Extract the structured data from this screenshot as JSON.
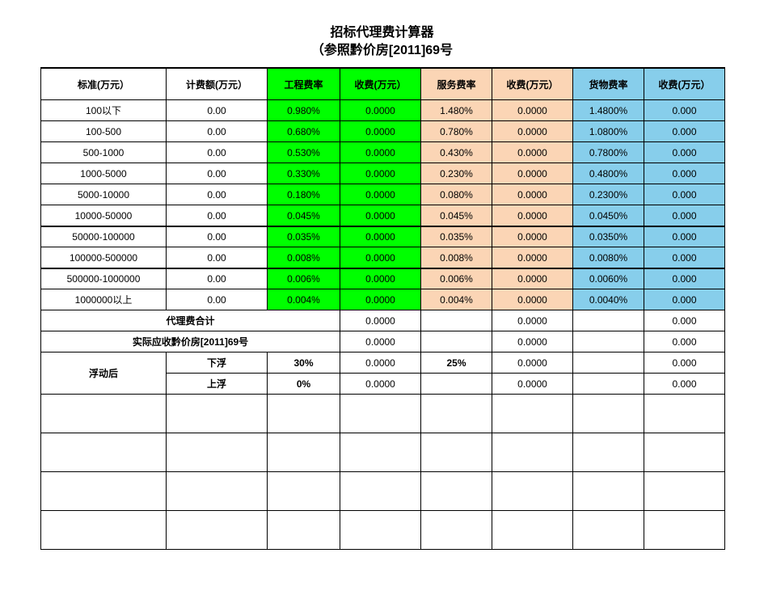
{
  "title_line1": "招标代理费计算器",
  "title_line2": "（参照黔价房[2011]69号",
  "headers": {
    "c0": "标准(万元）",
    "c1": "计费额(万元）",
    "c2": "工程费率",
    "c3": "收费(万元）",
    "c4": "服务费率",
    "c5": "收费(万元）",
    "c6": "货物费率",
    "c7": "收费(万元）"
  },
  "rows": [
    {
      "std": "100以下",
      "amt": "0.00",
      "r1": "0.980%",
      "f1": "0.0000",
      "r2": "1.480%",
      "f2": "0.0000",
      "r3": "1.4800%",
      "f3": "0.000"
    },
    {
      "std": "100-500",
      "amt": "0.00",
      "r1": "0.680%",
      "f1": "0.0000",
      "r2": "0.780%",
      "f2": "0.0000",
      "r3": "1.0800%",
      "f3": "0.000"
    },
    {
      "std": "500-1000",
      "amt": "0.00",
      "r1": "0.530%",
      "f1": "0.0000",
      "r2": "0.430%",
      "f2": "0.0000",
      "r3": "0.7800%",
      "f3": "0.000"
    },
    {
      "std": "1000-5000",
      "amt": "0.00",
      "r1": "0.330%",
      "f1": "0.0000",
      "r2": "0.230%",
      "f2": "0.0000",
      "r3": "0.4800%",
      "f3": "0.000"
    },
    {
      "std": "5000-10000",
      "amt": "0.00",
      "r1": "0.180%",
      "f1": "0.0000",
      "r2": "0.080%",
      "f2": "0.0000",
      "r3": "0.2300%",
      "f3": "0.000"
    },
    {
      "std": "10000-50000",
      "amt": "0.00",
      "r1": "0.045%",
      "f1": "0.0000",
      "r2": "0.045%",
      "f2": "0.0000",
      "r3": "0.0450%",
      "f3": "0.000"
    },
    {
      "std": "50000-100000",
      "amt": "0.00",
      "r1": "0.035%",
      "f1": "0.0000",
      "r2": "0.035%",
      "f2": "0.0000",
      "r3": "0.0350%",
      "f3": "0.000"
    },
    {
      "std": "100000-500000",
      "amt": "0.00",
      "r1": "0.008%",
      "f1": "0.0000",
      "r2": "0.008%",
      "f2": "0.0000",
      "r3": "0.0080%",
      "f3": "0.000"
    },
    {
      "std": "500000-1000000",
      "amt": "0.00",
      "r1": "0.006%",
      "f1": "0.0000",
      "r2": "0.006%",
      "f2": "0.0000",
      "r3": "0.0060%",
      "f3": "0.000"
    },
    {
      "std": "1000000以上",
      "amt": "0.00",
      "r1": "0.004%",
      "f1": "0.0000",
      "r2": "0.004%",
      "f2": "0.0000",
      "r3": "0.0040%",
      "f3": "0.000"
    }
  ],
  "subtotal": {
    "label": "代理费合计",
    "f1": "0.0000",
    "f2": "0.0000",
    "f3": "0.000"
  },
  "actual": {
    "label": "实际应收黔价房[2011]69号",
    "f1": "0.0000",
    "f2": "0.0000",
    "f3": "0.000"
  },
  "float_label": "浮动后",
  "float_down": {
    "label": "下浮",
    "p1": "30%",
    "f1": "0.0000",
    "p2": "25%",
    "f2": "0.0000",
    "f3": "0.000"
  },
  "float_up": {
    "label": "上浮",
    "p1": "0%",
    "f1": "0.0000",
    "p2": "",
    "f2": "0.0000",
    "f3": "0.000"
  },
  "colors": {
    "green": "#00ff00",
    "orange": "#fbd5b5",
    "blue": "#87ceeb",
    "border": "#000000",
    "background": "#ffffff"
  }
}
